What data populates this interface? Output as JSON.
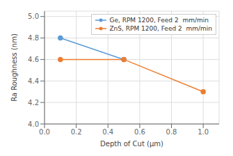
{
  "chart_data": {
    "type": "line",
    "xlabel": "Depth of Cut (μm)",
    "ylabel": "Ra Roughness (nm)",
    "series": [
      {
        "name": "Ge, RPM 1200, Feed 2  mm/min",
        "color": "#5b9bd5",
        "x": [
          0.1,
          0.5
        ],
        "values": [
          4.8,
          4.6
        ]
      },
      {
        "name": "ZnS, RPM 1200, Feed 2  mm/min",
        "color": "#ed7d31",
        "x": [
          0.1,
          0.5,
          1.0
        ],
        "values": [
          4.6,
          4.6,
          4.3
        ]
      }
    ],
    "xlim": [
      0,
      1.1
    ],
    "ylim": [
      4.0,
      5.05
    ],
    "xticks": [
      {
        "value": 0,
        "label": "0.0"
      },
      0.2,
      0.4,
      0.6,
      0.8,
      {
        "value": 1.0,
        "label": "1.0"
      }
    ],
    "yticks": [
      {
        "value": 4.0,
        "label": "4.0"
      },
      4.2,
      4.4,
      4.6,
      4.8,
      {
        "value": 5.0,
        "label": "5.0"
      }
    ],
    "grid": true,
    "legend": "upper right",
    "marker": "o"
  }
}
